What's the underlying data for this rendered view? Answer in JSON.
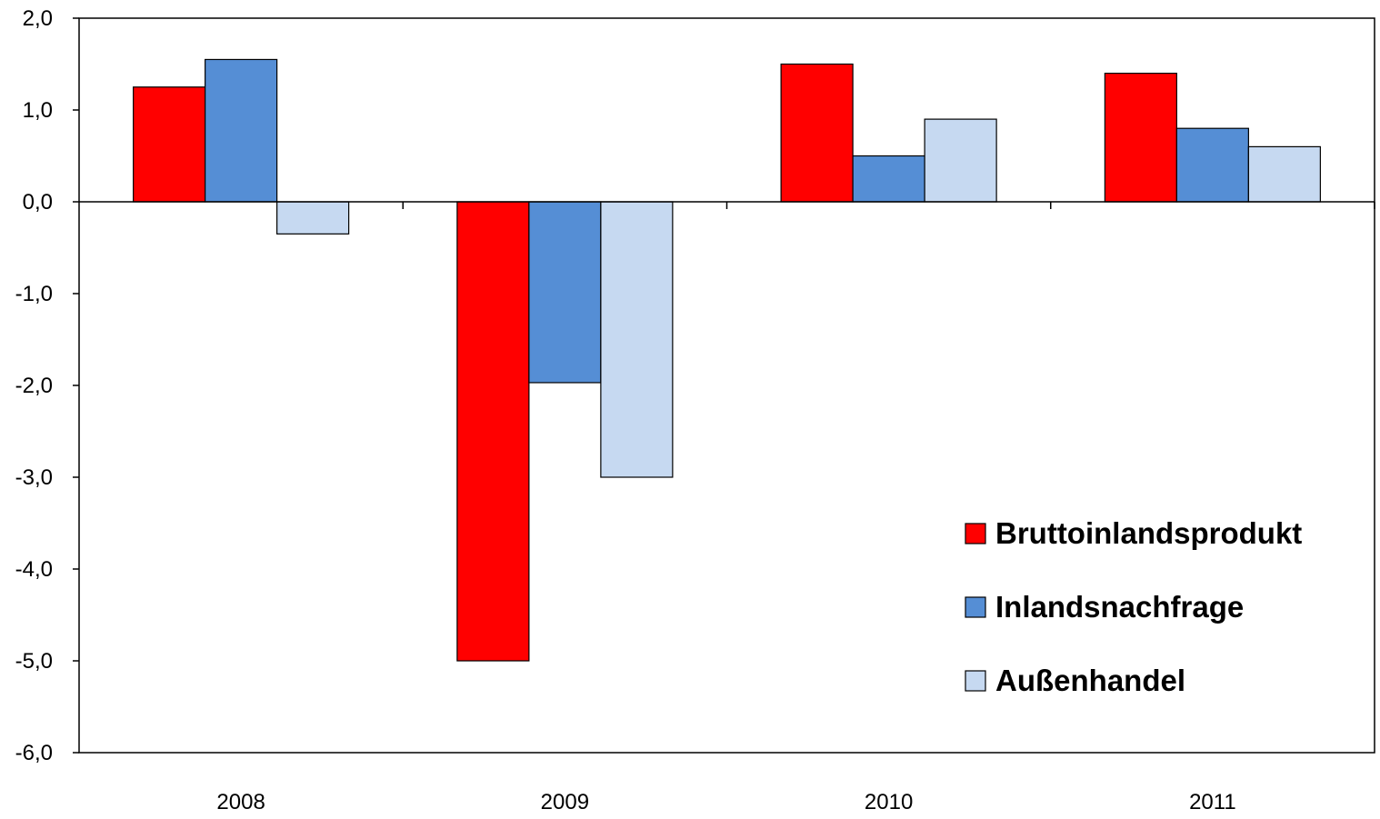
{
  "chart_data": {
    "type": "bar",
    "categories": [
      "2008",
      "2009",
      "2010",
      "2011"
    ],
    "series": [
      {
        "name": "Bruttoinlandsprodukt",
        "color": "#ff0000",
        "values": [
          1.25,
          -5.0,
          1.5,
          1.4
        ]
      },
      {
        "name": "Inlandsnachfrage",
        "color": "#558ed5",
        "values": [
          1.55,
          -1.97,
          0.5,
          0.8
        ]
      },
      {
        "name": "Außenhandel",
        "color": "#c6d9f1",
        "values": [
          -0.35,
          -3.0,
          0.9,
          0.6
        ]
      }
    ],
    "ylim": [
      -6.0,
      2.0
    ],
    "yticks": [
      "2,0",
      "1,0",
      "0,0",
      "-1,0",
      "-2,0",
      "-3,0",
      "-4,0",
      "-5,0",
      "-6,0"
    ],
    "ytick_values": [
      2,
      1,
      0,
      -1,
      -2,
      -3,
      -4,
      -5,
      -6
    ],
    "title": "",
    "xlabel": "",
    "ylabel": "",
    "grid": false,
    "legend_position": "bottom-right"
  }
}
